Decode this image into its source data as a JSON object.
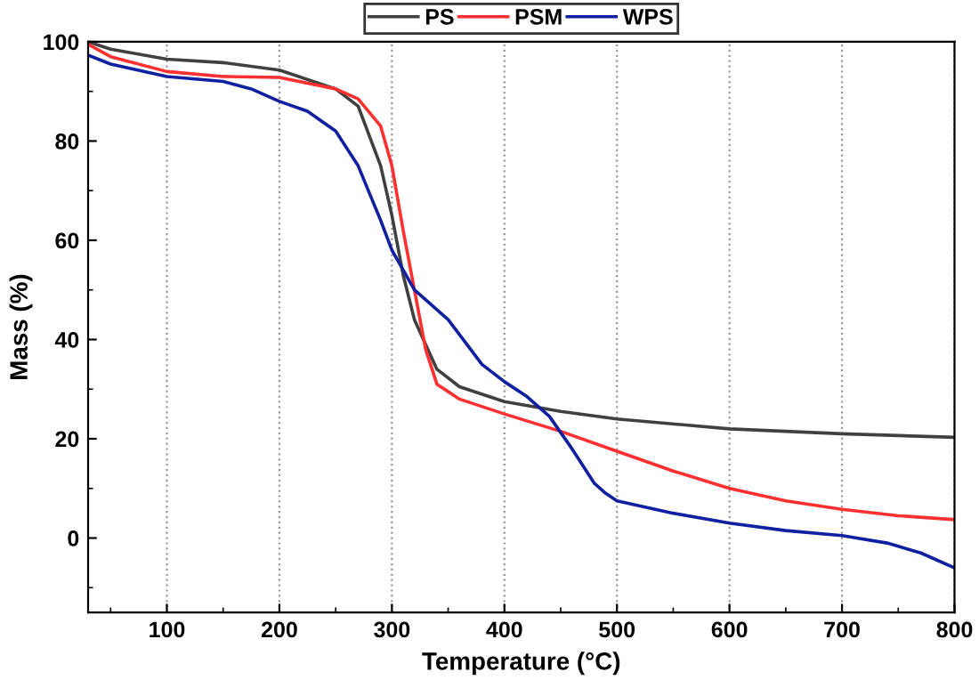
{
  "chart_data": {
    "type": "line",
    "xlabel": "Temperature (°C)",
    "ylabel": "Mass (%)",
    "xlim": [
      30,
      800
    ],
    "ylim": [
      -15,
      100
    ],
    "xticks": [
      100,
      200,
      300,
      400,
      500,
      600,
      700,
      800
    ],
    "yticks": [
      0,
      20,
      40,
      60,
      80,
      100
    ],
    "grid": "x",
    "legend": "top",
    "line_style": "solid",
    "marker": "none",
    "series": [
      {
        "name": "PS",
        "color": "#404040",
        "x": [
          30,
          50,
          100,
          150,
          200,
          250,
          270,
          290,
          300,
          310,
          320,
          340,
          360,
          400,
          450,
          500,
          600,
          700,
          800
        ],
        "values": [
          100,
          98.5,
          96.5,
          95.8,
          94.3,
          90.5,
          87,
          75,
          65,
          53,
          44,
          34,
          30.5,
          27.5,
          25.5,
          24,
          22,
          21,
          20.3
        ]
      },
      {
        "name": "PSM",
        "color": "#ff3030",
        "x": [
          30,
          50,
          100,
          150,
          200,
          250,
          270,
          290,
          300,
          310,
          320,
          330,
          340,
          360,
          400,
          450,
          500,
          550,
          600,
          650,
          700,
          750,
          800
        ],
        "values": [
          99.5,
          97,
          94,
          93,
          92.8,
          90.5,
          88.5,
          83,
          75,
          62,
          50,
          38,
          31,
          28,
          25,
          21.5,
          17.5,
          13.5,
          10,
          7.5,
          5.8,
          4.5,
          3.7
        ]
      },
      {
        "name": "WPS",
        "color": "#1020a0",
        "x": [
          30,
          50,
          100,
          150,
          175,
          200,
          225,
          250,
          270,
          290,
          300,
          320,
          350,
          380,
          400,
          420,
          440,
          460,
          480,
          490,
          500,
          550,
          600,
          650,
          700,
          740,
          770,
          800
        ],
        "values": [
          97.3,
          95.5,
          93,
          92,
          90.5,
          88,
          86,
          82,
          75,
          64,
          58,
          50,
          44,
          35,
          31.5,
          28.5,
          24.5,
          18,
          11,
          9,
          7.5,
          5,
          3,
          1.5,
          0.5,
          -1,
          -3,
          -6
        ]
      }
    ]
  }
}
